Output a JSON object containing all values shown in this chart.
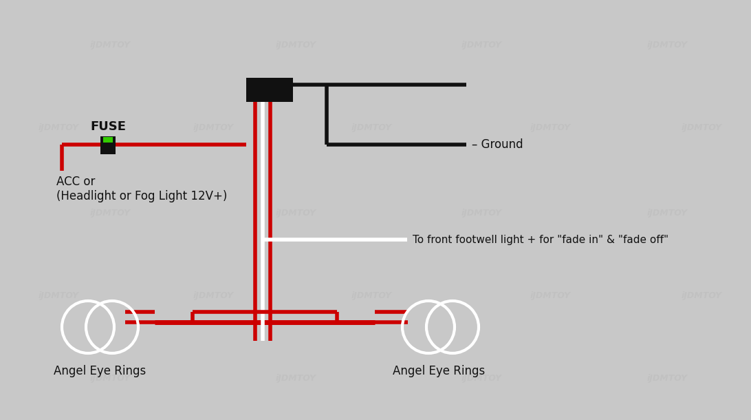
{
  "bg_color": "#c8c8c8",
  "wire_red": "#cc0000",
  "wire_black": "#111111",
  "wire_white": "#ffffff",
  "fuse_body_color": "#111111",
  "fuse_green": "#33cc00",
  "connector_color": "#111111",
  "angel_eye_color": "#ffffff",
  "text_color": "#111111",
  "watermark_color": "#bbbbbb",
  "label_fuse": "FUSE",
  "label_acc": "ACC or\n(Headlight or Fog Light 12V+)",
  "label_ground": "– Ground",
  "label_footwell": "To front footwell light + for \"fade in\" & \"fade off\"",
  "label_angel1": "Angel Eye Rings",
  "label_angel2": "Angel Eye Rings",
  "watermark": "iJDMTOY"
}
